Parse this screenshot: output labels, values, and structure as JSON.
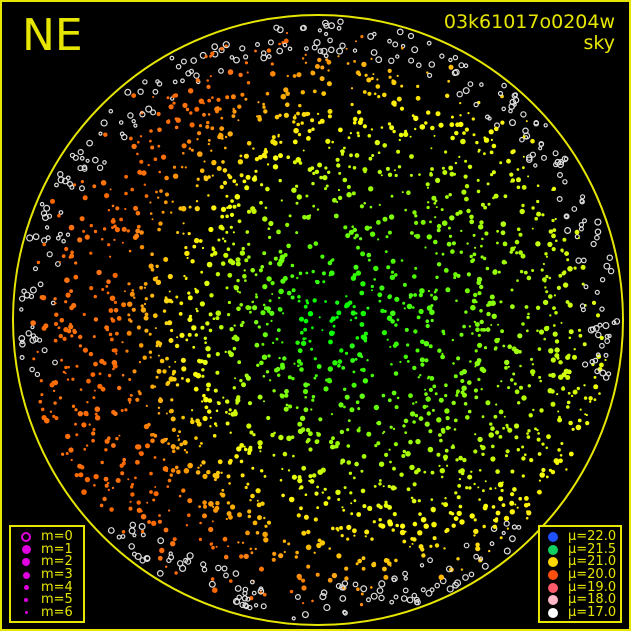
{
  "direction_label": "NE",
  "frame_id": "03k61017o0204w",
  "frame_type": "sky",
  "colors": {
    "frame": "#e6e600",
    "background": "#000000",
    "magnitude_symbol": "#e000e0"
  },
  "magnitude_legend": [
    {
      "label": "m=0",
      "hollow": true
    },
    {
      "label": "m=1"
    },
    {
      "label": "m=2"
    },
    {
      "label": "m=3"
    },
    {
      "label": "m=4"
    },
    {
      "label": "m=5"
    },
    {
      "label": "m=6"
    }
  ],
  "sky_brightness_legend": [
    {
      "label": "μ=22.0",
      "color": "#1e50ff"
    },
    {
      "label": "μ=21.5",
      "color": "#10d060"
    },
    {
      "label": "μ=21.0",
      "color": "#ffd800"
    },
    {
      "label": "μ=20.0",
      "color": "#ff5010"
    },
    {
      "label": "μ=19.0",
      "color": "#ff5a6a"
    },
    {
      "label": "μ=18.0",
      "color": "#ffb8c8"
    },
    {
      "label": "μ=17.0",
      "color": "#ffffff"
    }
  ]
}
